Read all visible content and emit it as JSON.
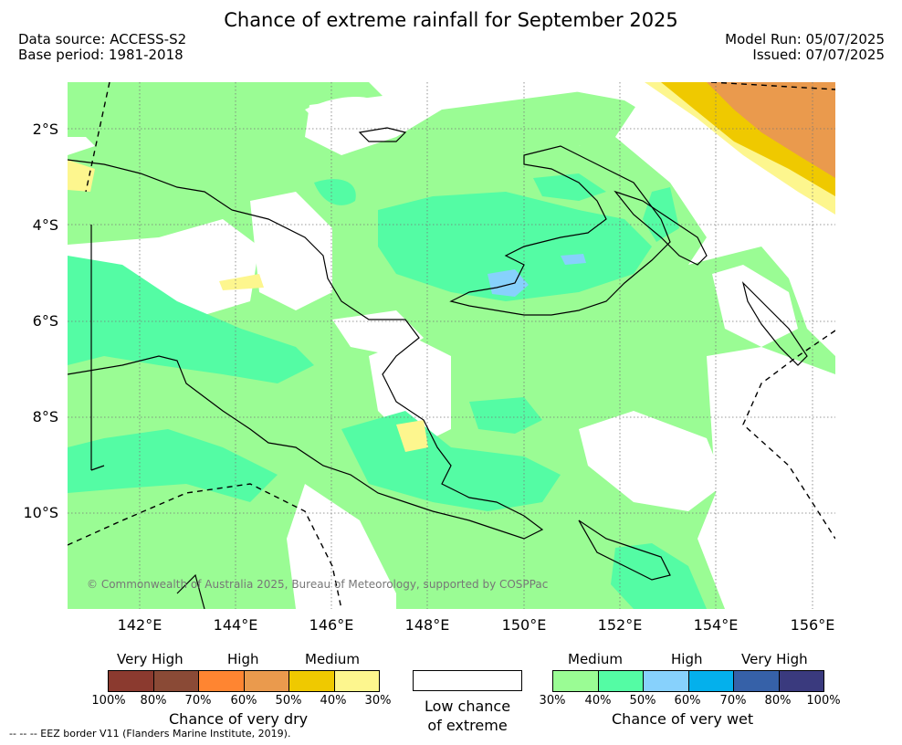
{
  "title": "Chance of extreme rainfall for September 2025",
  "data_source": "Data source: ACCESS-S2",
  "base_period": "Base period: 1981-2018",
  "model_run": "Model Run: 05/07/2025",
  "issued": "Issued: 07/07/2025",
  "lat_labels": [
    "2°S",
    "4°S",
    "6°S",
    "8°S",
    "10°S"
  ],
  "lon_labels": [
    "142°E",
    "144°E",
    "146°E",
    "148°E",
    "150°E",
    "152°E",
    "154°E",
    "156°E"
  ],
  "copyright": "© Commonwealth of Australia 2025, Bureau of Meteorology, supported by COSPPac",
  "legend": {
    "dry": {
      "categories": [
        "Very High",
        "High",
        "Medium"
      ],
      "colors": [
        "#8b3a2f",
        "#8a4a36",
        "#ff8531",
        "#ea9a4d",
        "#efc900",
        "#fdf68e"
      ],
      "ticks": [
        "100%",
        "80%",
        "70%",
        "60%",
        "50%",
        "40%",
        "30%"
      ],
      "caption": "Chance of very dry"
    },
    "low": {
      "line1": "Low chance",
      "line2": "of extreme",
      "color": "#ffffff"
    },
    "wet": {
      "categories": [
        "Medium",
        "High",
        "Very High"
      ],
      "colors": [
        "#9afc94",
        "#54fca4",
        "#87d1fc",
        "#04b0ec",
        "#3661a8",
        "#3a3a7e"
      ],
      "ticks": [
        "30%",
        "40%",
        "50%",
        "60%",
        "70%",
        "80%",
        "100%"
      ],
      "caption": "Chance of very wet"
    }
  },
  "eez_note": "--  --  -- EEZ border V11 (Flanders Marine Institute, 2019)."
}
